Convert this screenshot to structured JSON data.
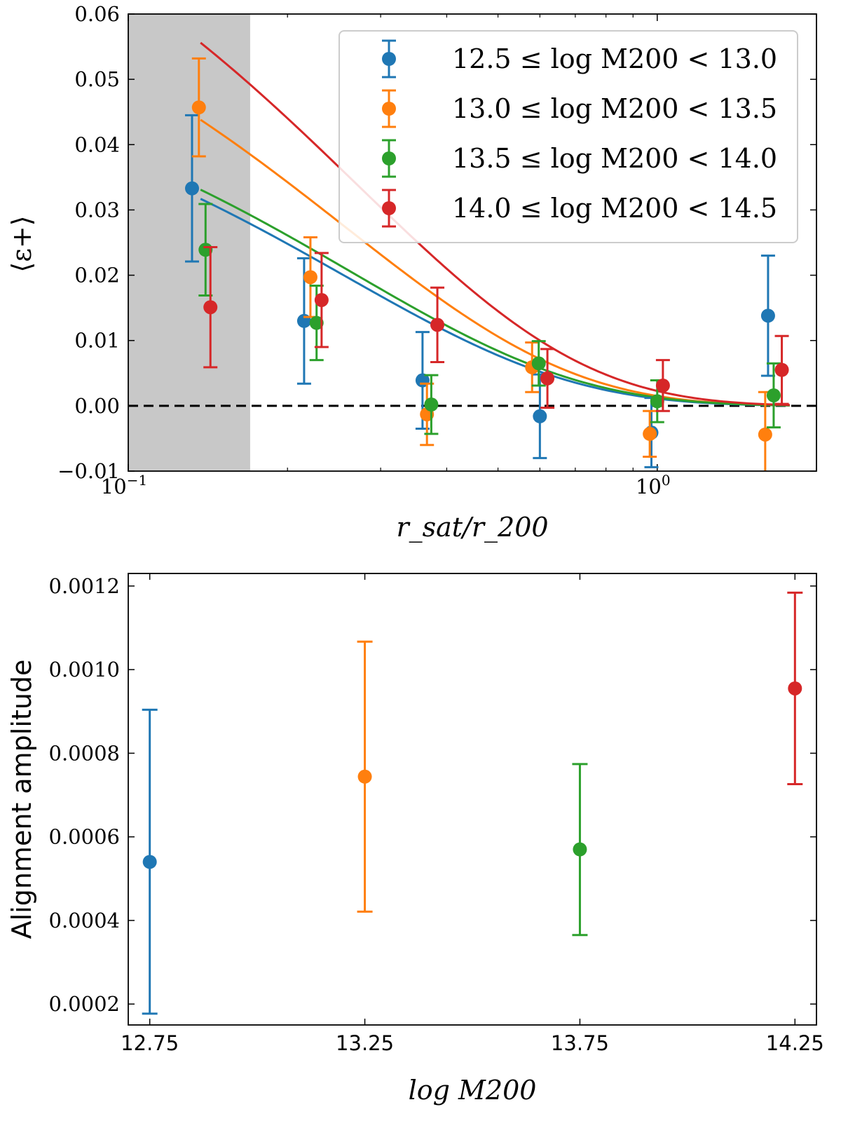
{
  "chart_data": [
    {
      "type": "scatter",
      "panel": "top",
      "title": "",
      "xlabel": "r_sat/r_200",
      "ylabel": "⟨ε+⟩",
      "xscale": "log",
      "xlim": [
        0.1,
        2.0
      ],
      "ylim": [
        -0.01,
        0.06
      ],
      "yticks": [
        "−0.01",
        "0.00",
        "0.01",
        "0.02",
        "0.03",
        "0.04",
        "0.05",
        "0.06"
      ],
      "xtick_labels": [
        {
          "base": "10",
          "exp": "−1"
        },
        {
          "base": "10",
          "exp": "0"
        }
      ],
      "shaded_region": {
        "from": 0.1,
        "to": 0.17,
        "color": "#c8c8c8"
      },
      "reference_line": {
        "y": 0,
        "style": "dashed",
        "color": "#000000"
      },
      "legend_position": "top-right",
      "series": [
        {
          "name": "12.5 ≤ log M200 < 13.0",
          "color": "#1f77b4",
          "x": [
            0.132,
            0.215,
            0.36,
            0.6,
            0.975,
            1.62
          ],
          "y": [
            0.0333,
            0.013,
            0.0039,
            -0.0016,
            -0.0041,
            0.0138
          ],
          "yerr": [
            0.0112,
            0.0096,
            0.0074,
            0.0064,
            0.0053,
            0.0092
          ],
          "fit": {
            "A": 0.0317,
            "r0": 0.257,
            "from": 0.137,
            "to": 1.78
          }
        },
        {
          "name": "13.0 ≤ log M200 < 13.5",
          "color": "#ff7f0e",
          "x": [
            0.136,
            0.221,
            0.367,
            0.58,
            0.968,
            1.6
          ],
          "y": [
            0.0457,
            0.0197,
            -0.0013,
            0.0059,
            -0.0043,
            -0.0044
          ],
          "yerr": [
            0.0075,
            0.0061,
            0.0047,
            0.0038,
            0.0035,
            0.0065
          ],
          "fit": {
            "A": 0.0438,
            "r0": 0.256,
            "from": 0.137,
            "to": 1.78
          }
        },
        {
          "name": "13.5 ≤ log M200 < 14.0",
          "color": "#2ca02c",
          "x": [
            0.14,
            0.227,
            0.374,
            0.597,
            1.0,
            1.66
          ],
          "y": [
            0.0239,
            0.0127,
            0.0002,
            0.0065,
            0.0007,
            0.0016
          ],
          "yerr": [
            0.007,
            0.0057,
            0.0045,
            0.0034,
            0.0032,
            0.0049
          ],
          "fit": {
            "A": 0.0331,
            "r0": 0.265,
            "from": 0.137,
            "to": 1.78
          }
        },
        {
          "name": "14.0 ≤ log M200 < 14.5",
          "color": "#d62728",
          "x": [
            0.143,
            0.232,
            0.384,
            0.62,
            1.025,
            1.72
          ],
          "y": [
            0.0151,
            0.0162,
            0.0124,
            0.0042,
            0.0031,
            0.0055
          ],
          "yerr": [
            0.0092,
            0.0072,
            0.0057,
            0.0045,
            0.0039,
            0.0052
          ],
          "fit": {
            "A": 0.0556,
            "r0": 0.27,
            "from": 0.137,
            "to": 1.78
          }
        }
      ]
    },
    {
      "type": "scatter",
      "panel": "bottom",
      "title": "",
      "xlabel": "log M200",
      "ylabel": "Alignment amplitude",
      "xlim": [
        12.7,
        14.3
      ],
      "ylim": [
        0.00015,
        0.00123
      ],
      "xticks": [
        "12.75",
        "13.25",
        "13.75",
        "14.25"
      ],
      "yticks": [
        "0.0002",
        "0.0004",
        "0.0006",
        "0.0008",
        "0.0010",
        "0.0012"
      ],
      "series": [
        {
          "name": "12.5 ≤ log M200 < 13.0",
          "color": "#1f77b4",
          "x": 12.75,
          "y": 0.00054,
          "ylo": 0.000177,
          "yhi": 0.000904
        },
        {
          "name": "13.0 ≤ log M200 < 13.5",
          "color": "#ff7f0e",
          "x": 13.25,
          "y": 0.000744,
          "ylo": 0.000421,
          "yhi": 0.001067
        },
        {
          "name": "13.5 ≤ log M200 < 14.0",
          "color": "#2ca02c",
          "x": 13.75,
          "y": 0.00057,
          "ylo": 0.000365,
          "yhi": 0.000774
        },
        {
          "name": "14.0 ≤ log M200 < 14.5",
          "color": "#d62728",
          "x": 14.25,
          "y": 0.000955,
          "ylo": 0.000726,
          "yhi": 0.001184
        }
      ]
    }
  ]
}
